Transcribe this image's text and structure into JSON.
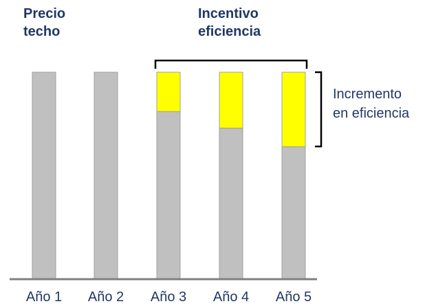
{
  "chart_data": {
    "type": "bar",
    "categories": [
      "Año 1",
      "Año 2",
      "Año 3",
      "Año 4",
      "Año 5"
    ],
    "series": [
      {
        "name": "",
        "color": "#c0c0c0",
        "values": [
          100,
          100,
          81,
          73,
          64
        ]
      },
      {
        "name": "",
        "color": "#ffff00",
        "values": [
          0,
          0,
          19,
          27,
          36
        ]
      }
    ],
    "stacked": true,
    "ylim": [
      0,
      100
    ],
    "grid": false,
    "annotations": {
      "price_cap_label": [
        "Precio",
        "techo"
      ],
      "incentive_label": [
        "Incentivo",
        "eficiencia"
      ],
      "increment_label": [
        "Incremento",
        "en eficiencia"
      ]
    }
  }
}
